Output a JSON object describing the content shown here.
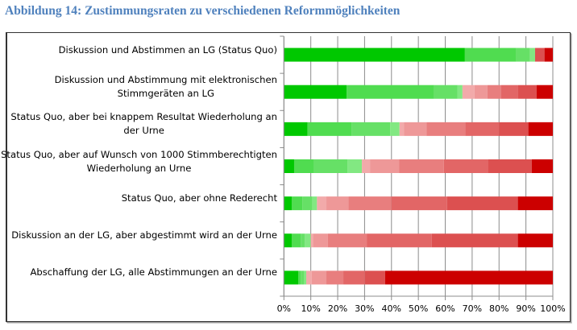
{
  "title": "Abbildung 14: Zustimmungsraten zu verschiedenen Reformmöglichkeiten",
  "chart_data": {
    "type": "bar",
    "orientation": "horizontal",
    "stacked": "percent",
    "title": "Abbildung 14: Zustimmungsraten zu verschiedenen Reformmöglichkeiten",
    "xlabel": "",
    "ylabel": "",
    "xlim": [
      0,
      100
    ],
    "x_ticks": [
      "0%",
      "10%",
      "20%",
      "30%",
      "40%",
      "50%",
      "60%",
      "70%",
      "80%",
      "90%",
      "100%"
    ],
    "grid": true,
    "legend": "none",
    "categories": [
      [
        "Diskussion und Abstimmen an LG (Status Quo)"
      ],
      [
        "Diskussion und Abstimmung mit elektronischen",
        "Stimmgeräten an LG"
      ],
      [
        "Status Quo, aber bei knappem Resultat Wiederholung an",
        "der Urne"
      ],
      [
        "Status Quo, aber auf Wunsch von 1000 Stimmberechtigten",
        "Wiederholung an Urne"
      ],
      [
        "Status Quo, aber ohne Rederecht"
      ],
      [
        "Diskussion an der LG, aber abgestimmt wird an der Urne"
      ],
      [
        "Abschaffung der LG, alle Abstimmungen an der Urne"
      ]
    ],
    "segment_colors": [
      "#00C800",
      "#50DC50",
      "#66E066",
      "#82E882",
      "#F2AAAA",
      "#EE9898",
      "#E87E7E",
      "#E26666",
      "#DC5050",
      "#CC0000"
    ],
    "values": [
      [
        67.3,
        19.1,
        5.1,
        1.9,
        0,
        0,
        0,
        0,
        3.5,
        3.1
      ],
      [
        23.3,
        32.6,
        8.7,
        1.8,
        4.5,
        4.8,
        5.1,
        6.3,
        6.9,
        6.0
      ],
      [
        8.8,
        16.3,
        14.4,
        3.5,
        1.7,
        8.3,
        14.4,
        12.6,
        10.9,
        9.1
      ],
      [
        3.8,
        7.2,
        12.6,
        5.4,
        3.0,
        10.8,
        16.7,
        16.4,
        16.3,
        7.8
      ],
      [
        2.9,
        4.0,
        3.7,
        1.7,
        3.5,
        8.2,
        16.0,
        20.7,
        26.3,
        13.0
      ],
      [
        2.9,
        3.4,
        1.5,
        2.2,
        0.8,
        5.5,
        14.5,
        24.2,
        32.0,
        13.0
      ],
      [
        5.3,
        1.0,
        1.3,
        0.7,
        2.0,
        5.5,
        6.3,
        8.0,
        7.5,
        62.4
      ]
    ]
  }
}
